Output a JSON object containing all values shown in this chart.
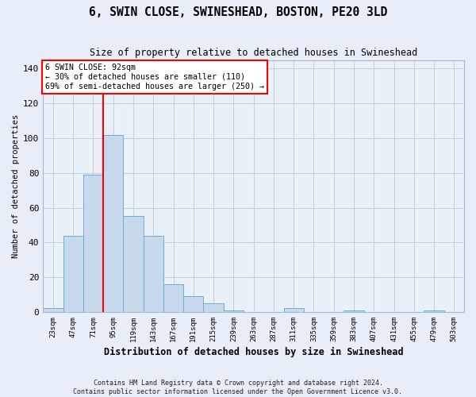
{
  "title": "6, SWIN CLOSE, SWINESHEAD, BOSTON, PE20 3LD",
  "subtitle": "Size of property relative to detached houses in Swineshead",
  "xlabel": "Distribution of detached houses by size in Swineshead",
  "ylabel": "Number of detached properties",
  "bar_color": "#c8d9ee",
  "bar_edge_color": "#6baed6",
  "grid_color": "#c8d0de",
  "figure_bg_color": "#e8eef7",
  "plot_bg_color": "#eaf0f8",
  "bins": [
    "23sqm",
    "47sqm",
    "71sqm",
    "95sqm",
    "119sqm",
    "143sqm",
    "167sqm",
    "191sqm",
    "215sqm",
    "239sqm",
    "263sqm",
    "287sqm",
    "311sqm",
    "335sqm",
    "359sqm",
    "383sqm",
    "407sqm",
    "431sqm",
    "455sqm",
    "479sqm",
    "503sqm"
  ],
  "values": [
    2,
    44,
    79,
    102,
    55,
    44,
    16,
    9,
    5,
    1,
    0,
    0,
    2,
    0,
    0,
    1,
    0,
    0,
    0,
    1,
    0
  ],
  "ylim": [
    0,
    145
  ],
  "yticks": [
    0,
    20,
    40,
    60,
    80,
    100,
    120,
    140
  ],
  "red_line_bin_index": 3,
  "annotation_line1": "6 SWIN CLOSE: 92sqm",
  "annotation_line2": "← 30% of detached houses are smaller (110)",
  "annotation_line3": "69% of semi-detached houses are larger (250) →",
  "footer_line1": "Contains HM Land Registry data © Crown copyright and database right 2024.",
  "footer_line2": "Contains public sector information licensed under the Open Government Licence v3.0.",
  "figsize": [
    6.0,
    5.0
  ],
  "dpi": 100
}
